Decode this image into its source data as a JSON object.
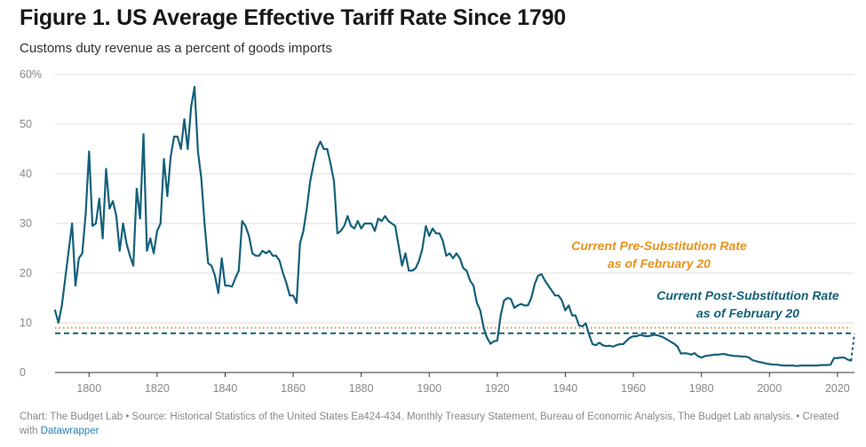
{
  "title": "Figure 1. US Average Effective Tariff Rate Since 1790",
  "subtitle": "Customs duty revenue as a percent of goods imports",
  "footer": {
    "text": "Chart: The Budget Lab • Source: Historical Statistics of the United States Ea424-434, Monthly Treasury Statement, Bureau of Economic Analysis, The Budget Lab analysis. • Created with ",
    "link": "Datawrapper"
  },
  "colors": {
    "series": "#14607a",
    "pre_substitution": "#e8921c",
    "post_substitution": "#14607a",
    "gridline": "#dddddd",
    "axis_text": "#888888"
  },
  "chart_data": {
    "type": "line",
    "title": "Figure 1. US Average Effective Tariff Rate Since 1790",
    "subtitle": "Customs duty revenue as a percent of goods imports",
    "xlabel": "",
    "ylabel": "",
    "xlim": [
      1790,
      2025
    ],
    "ylim": [
      0,
      60
    ],
    "x_ticks": [
      1800,
      1820,
      1840,
      1860,
      1880,
      1900,
      1920,
      1940,
      1960,
      1980,
      2000,
      2020
    ],
    "y_ticks": [
      0,
      10,
      20,
      30,
      40,
      50,
      60
    ],
    "y_tick_labels": [
      "0",
      "10",
      "20",
      "30",
      "40",
      "50",
      "60%"
    ],
    "grid": true,
    "legend": "none",
    "series": [
      {
        "points": [
          [
            1790,
            12.5
          ],
          [
            1791,
            10.0
          ],
          [
            1792,
            13.5
          ],
          [
            1793,
            19.0
          ],
          [
            1794,
            24.5
          ],
          [
            1795,
            30.0
          ],
          [
            1796,
            17.5
          ],
          [
            1797,
            23.0
          ],
          [
            1798,
            24.0
          ],
          [
            1799,
            32.0
          ],
          [
            1800,
            44.5
          ],
          [
            1801,
            29.5
          ],
          [
            1802,
            30.0
          ],
          [
            1803,
            35.0
          ],
          [
            1804,
            27.0
          ],
          [
            1805,
            41.0
          ],
          [
            1806,
            33.0
          ],
          [
            1807,
            34.5
          ],
          [
            1808,
            31.5
          ],
          [
            1809,
            24.5
          ],
          [
            1810,
            30.0
          ],
          [
            1811,
            26.0
          ],
          [
            1812,
            23.5
          ],
          [
            1813,
            21.5
          ],
          [
            1814,
            37.0
          ],
          [
            1815,
            31.0
          ],
          [
            1816,
            48.0
          ],
          [
            1817,
            24.5
          ],
          [
            1818,
            27.0
          ],
          [
            1819,
            24.0
          ],
          [
            1820,
            28.5
          ],
          [
            1821,
            30.0
          ],
          [
            1822,
            43.0
          ],
          [
            1823,
            35.5
          ],
          [
            1824,
            43.5
          ],
          [
            1825,
            47.5
          ],
          [
            1826,
            47.5
          ],
          [
            1827,
            45.0
          ],
          [
            1828,
            51.0
          ],
          [
            1829,
            45.0
          ],
          [
            1830,
            53.5
          ],
          [
            1831,
            57.5
          ],
          [
            1832,
            44.5
          ],
          [
            1833,
            39.0
          ],
          [
            1834,
            29.5
          ],
          [
            1835,
            22.0
          ],
          [
            1836,
            21.5
          ],
          [
            1837,
            19.5
          ],
          [
            1838,
            16.0
          ],
          [
            1839,
            23.0
          ],
          [
            1840,
            17.5
          ],
          [
            1841,
            17.5
          ],
          [
            1842,
            17.3
          ],
          [
            1843,
            19.0
          ],
          [
            1844,
            20.5
          ],
          [
            1845,
            30.5
          ],
          [
            1846,
            29.5
          ],
          [
            1847,
            27.5
          ],
          [
            1848,
            24.0
          ],
          [
            1849,
            23.5
          ],
          [
            1850,
            23.5
          ],
          [
            1851,
            24.5
          ],
          [
            1852,
            24.0
          ],
          [
            1853,
            24.5
          ],
          [
            1854,
            23.5
          ],
          [
            1855,
            23.5
          ],
          [
            1856,
            22.5
          ],
          [
            1857,
            20.0
          ],
          [
            1858,
            18.0
          ],
          [
            1859,
            15.5
          ],
          [
            1860,
            15.5
          ],
          [
            1861,
            14.0
          ],
          [
            1862,
            26.0
          ],
          [
            1863,
            28.5
          ],
          [
            1864,
            33.0
          ],
          [
            1865,
            38.5
          ],
          [
            1866,
            42.0
          ],
          [
            1867,
            45.0
          ],
          [
            1868,
            46.5
          ],
          [
            1869,
            45.0
          ],
          [
            1870,
            45.0
          ],
          [
            1871,
            42.0
          ],
          [
            1872,
            38.5
          ],
          [
            1873,
            28.0
          ],
          [
            1874,
            28.5
          ],
          [
            1875,
            29.5
          ],
          [
            1876,
            31.5
          ],
          [
            1877,
            29.5
          ],
          [
            1878,
            29.0
          ],
          [
            1879,
            30.5
          ],
          [
            1880,
            29.0
          ],
          [
            1881,
            30.0
          ],
          [
            1882,
            30.0
          ],
          [
            1883,
            30.0
          ],
          [
            1884,
            28.5
          ],
          [
            1885,
            31.0
          ],
          [
            1886,
            30.5
          ],
          [
            1887,
            31.5
          ],
          [
            1888,
            30.5
          ],
          [
            1889,
            30.0
          ],
          [
            1890,
            29.5
          ],
          [
            1891,
            25.5
          ],
          [
            1892,
            21.5
          ],
          [
            1893,
            24.0
          ],
          [
            1894,
            20.5
          ],
          [
            1895,
            20.5
          ],
          [
            1896,
            21.0
          ],
          [
            1897,
            22.5
          ],
          [
            1898,
            25.0
          ],
          [
            1899,
            29.5
          ],
          [
            1900,
            27.5
          ],
          [
            1901,
            29.0
          ],
          [
            1902,
            28.0
          ],
          [
            1903,
            28.0
          ],
          [
            1904,
            26.5
          ],
          [
            1905,
            23.5
          ],
          [
            1906,
            24.0
          ],
          [
            1907,
            23.0
          ],
          [
            1908,
            24.0
          ],
          [
            1909,
            23.0
          ],
          [
            1910,
            21.0
          ],
          [
            1911,
            20.5
          ],
          [
            1912,
            18.5
          ],
          [
            1913,
            17.5
          ],
          [
            1914,
            14.0
          ],
          [
            1915,
            12.5
          ],
          [
            1916,
            9.0
          ],
          [
            1917,
            7.0
          ],
          [
            1918,
            5.8
          ],
          [
            1919,
            6.3
          ],
          [
            1920,
            6.4
          ],
          [
            1921,
            11.5
          ],
          [
            1922,
            14.5
          ],
          [
            1923,
            15.0
          ],
          [
            1924,
            14.8
          ],
          [
            1925,
            13.0
          ],
          [
            1926,
            13.5
          ],
          [
            1927,
            13.8
          ],
          [
            1928,
            13.5
          ],
          [
            1929,
            13.5
          ],
          [
            1930,
            15.0
          ],
          [
            1931,
            17.8
          ],
          [
            1932,
            19.5
          ],
          [
            1933,
            19.8
          ],
          [
            1934,
            18.5
          ],
          [
            1935,
            17.5
          ],
          [
            1936,
            16.5
          ],
          [
            1937,
            15.5
          ],
          [
            1938,
            15.5
          ],
          [
            1939,
            14.5
          ],
          [
            1940,
            12.5
          ],
          [
            1941,
            13.5
          ],
          [
            1942,
            11.5
          ],
          [
            1943,
            11.5
          ],
          [
            1944,
            9.5
          ],
          [
            1945,
            9.3
          ],
          [
            1946,
            9.9
          ],
          [
            1947,
            7.6
          ],
          [
            1948,
            5.7
          ],
          [
            1949,
            5.5
          ],
          [
            1950,
            6.0
          ],
          [
            1951,
            5.5
          ],
          [
            1952,
            5.3
          ],
          [
            1953,
            5.4
          ],
          [
            1954,
            5.2
          ],
          [
            1955,
            5.5
          ],
          [
            1956,
            5.7
          ],
          [
            1957,
            5.7
          ],
          [
            1958,
            6.4
          ],
          [
            1959,
            7.0
          ],
          [
            1960,
            7.3
          ],
          [
            1961,
            7.3
          ],
          [
            1962,
            7.6
          ],
          [
            1963,
            7.4
          ],
          [
            1964,
            7.3
          ],
          [
            1965,
            7.4
          ],
          [
            1966,
            7.6
          ],
          [
            1967,
            7.5
          ],
          [
            1968,
            7.3
          ],
          [
            1969,
            7.0
          ],
          [
            1970,
            6.6
          ],
          [
            1971,
            6.2
          ],
          [
            1972,
            5.8
          ],
          [
            1973,
            5.2
          ],
          [
            1974,
            3.8
          ],
          [
            1975,
            3.9
          ],
          [
            1976,
            3.8
          ],
          [
            1977,
            3.6
          ],
          [
            1978,
            3.9
          ],
          [
            1979,
            3.3
          ],
          [
            1980,
            3.0
          ],
          [
            1981,
            3.3
          ],
          [
            1982,
            3.4
          ],
          [
            1983,
            3.5
          ],
          [
            1984,
            3.6
          ],
          [
            1985,
            3.6
          ],
          [
            1986,
            3.7
          ],
          [
            1987,
            3.7
          ],
          [
            1988,
            3.5
          ],
          [
            1989,
            3.4
          ],
          [
            1990,
            3.3
          ],
          [
            1991,
            3.3
          ],
          [
            1992,
            3.2
          ],
          [
            1993,
            3.2
          ],
          [
            1994,
            3.0
          ],
          [
            1995,
            2.5
          ],
          [
            1996,
            2.3
          ],
          [
            1997,
            2.1
          ],
          [
            1998,
            2.0
          ],
          [
            1999,
            1.8
          ],
          [
            2000,
            1.7
          ],
          [
            2001,
            1.6
          ],
          [
            2002,
            1.6
          ],
          [
            2003,
            1.5
          ],
          [
            2004,
            1.4
          ],
          [
            2005,
            1.4
          ],
          [
            2006,
            1.4
          ],
          [
            2007,
            1.4
          ],
          [
            2008,
            1.3
          ],
          [
            2009,
            1.4
          ],
          [
            2010,
            1.4
          ],
          [
            2011,
            1.4
          ],
          [
            2012,
            1.4
          ],
          [
            2013,
            1.4
          ],
          [
            2014,
            1.4
          ],
          [
            2015,
            1.5
          ],
          [
            2016,
            1.5
          ],
          [
            2017,
            1.5
          ],
          [
            2018,
            1.6
          ],
          [
            2019,
            2.9
          ],
          [
            2020,
            2.9
          ],
          [
            2021,
            3.0
          ],
          [
            2022,
            3.0
          ],
          [
            2023,
            2.6
          ],
          [
            2024,
            2.4
          ],
          [
            2025,
            7.8
          ]
        ]
      }
    ],
    "reference_lines": [
      {
        "label_line1": "Current Pre-Substitution Rate",
        "label_line2": "as of February 20",
        "value": 9.0,
        "style": "dotted",
        "color": "#e8921c"
      },
      {
        "label_line1": "Current Post-Substitution Rate",
        "label_line2": "as of February 20",
        "value": 7.9,
        "style": "dashed",
        "color": "#14607a"
      }
    ]
  }
}
